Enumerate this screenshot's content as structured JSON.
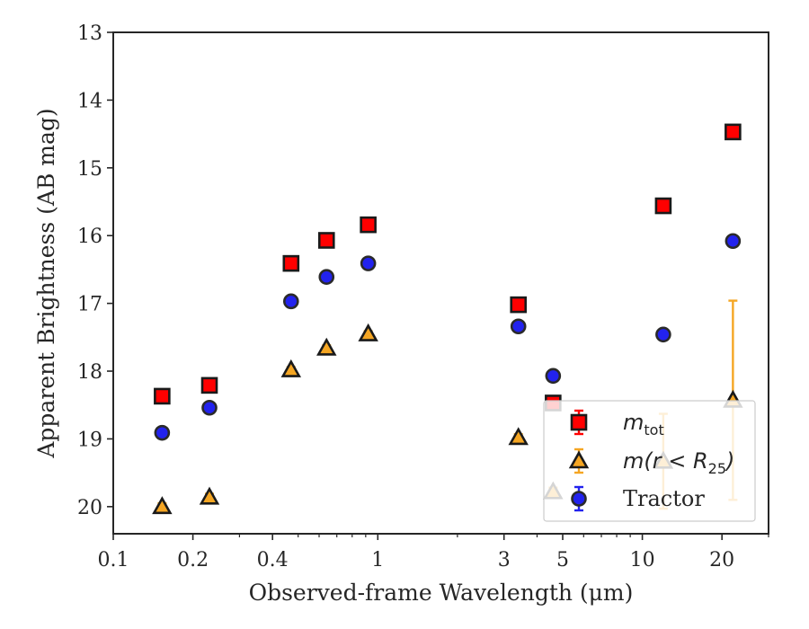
{
  "chart_data": {
    "type": "scatter",
    "xlabel": "Observed-frame Wavelength (μm)",
    "ylabel": "Apparent Brightness (AB mag)",
    "xscale": "log",
    "xlim": [
      0.1,
      30
    ],
    "ylim": [
      20.4,
      13
    ],
    "y_inverted": true,
    "x_ticks": [
      0.1,
      0.2,
      0.4,
      1,
      3,
      5,
      10,
      20
    ],
    "x_tick_labels": [
      "0.1",
      "0.2",
      "0.4",
      "1",
      "3",
      "5",
      "10",
      "20"
    ],
    "y_ticks": [
      13,
      14,
      15,
      16,
      17,
      18,
      19,
      20
    ],
    "y_tick_labels": [
      "13",
      "14",
      "15",
      "16",
      "17",
      "18",
      "19",
      "20"
    ],
    "legend_placement": "lower-right",
    "legend": [
      {
        "series": "mtot",
        "base": "m",
        "sub": "tot",
        "italic_text": ""
      },
      {
        "series": "mr25",
        "base": "m(r < R",
        "sub": "25",
        "italic_text": ")"
      },
      {
        "series": "tractor",
        "base": "Tractor",
        "sub": "",
        "italic_text": ""
      }
    ],
    "series": [
      {
        "key": "mtot",
        "marker": "square",
        "color": "#ff0000",
        "edge": "#1a1a1a",
        "errcolor": "#ff0000",
        "points": [
          {
            "x": 0.153,
            "y": 18.37,
            "err": 0.06
          },
          {
            "x": 0.231,
            "y": 18.21,
            "err": 0.05
          },
          {
            "x": 0.47,
            "y": 16.41,
            "err": 0.04
          },
          {
            "x": 0.64,
            "y": 16.07,
            "err": 0.04
          },
          {
            "x": 0.92,
            "y": 15.84,
            "err": 0.04
          },
          {
            "x": 3.4,
            "y": 17.02,
            "err": 0.05
          },
          {
            "x": 4.6,
            "y": 18.47,
            "err": 0.05
          },
          {
            "x": 12.0,
            "y": 15.56,
            "err": 0.05
          },
          {
            "x": 22.0,
            "y": 14.47,
            "err": 0.05
          }
        ]
      },
      {
        "key": "mr25",
        "marker": "triangle",
        "color": "#f5a623",
        "edge": "#1a1a1a",
        "errcolor": "#f5a623",
        "points": [
          {
            "x": 0.153,
            "y": 20.0,
            "err": 0.05
          },
          {
            "x": 0.231,
            "y": 19.86,
            "err": 0.05
          },
          {
            "x": 0.47,
            "y": 17.98,
            "err": 0.04
          },
          {
            "x": 0.64,
            "y": 17.66,
            "err": 0.04
          },
          {
            "x": 0.92,
            "y": 17.45,
            "err": 0.04
          },
          {
            "x": 3.4,
            "y": 18.98,
            "err": 0.05
          },
          {
            "x": 4.6,
            "y": 19.78,
            "err": 0.06
          },
          {
            "x": 12.0,
            "y": 19.33,
            "err": 0.7
          },
          {
            "x": 22.0,
            "y": 18.43,
            "err": 1.47
          }
        ]
      },
      {
        "key": "tractor",
        "marker": "circle",
        "color": "#2222ee",
        "edge": "#2a2a2a",
        "errcolor": "#2222ee",
        "points": [
          {
            "x": 0.153,
            "y": 18.91,
            "err": 0.07
          },
          {
            "x": 0.231,
            "y": 18.54,
            "err": 0.06
          },
          {
            "x": 0.47,
            "y": 16.97,
            "err": 0.06
          },
          {
            "x": 0.64,
            "y": 16.61,
            "err": 0.06
          },
          {
            "x": 0.92,
            "y": 16.41,
            "err": 0.06
          },
          {
            "x": 3.4,
            "y": 17.34,
            "err": 0.06
          },
          {
            "x": 4.6,
            "y": 18.07,
            "err": 0.07
          },
          {
            "x": 12.0,
            "y": 17.46,
            "err": 0.07
          },
          {
            "x": 22.0,
            "y": 16.08,
            "err": 0.07
          }
        ]
      }
    ]
  }
}
